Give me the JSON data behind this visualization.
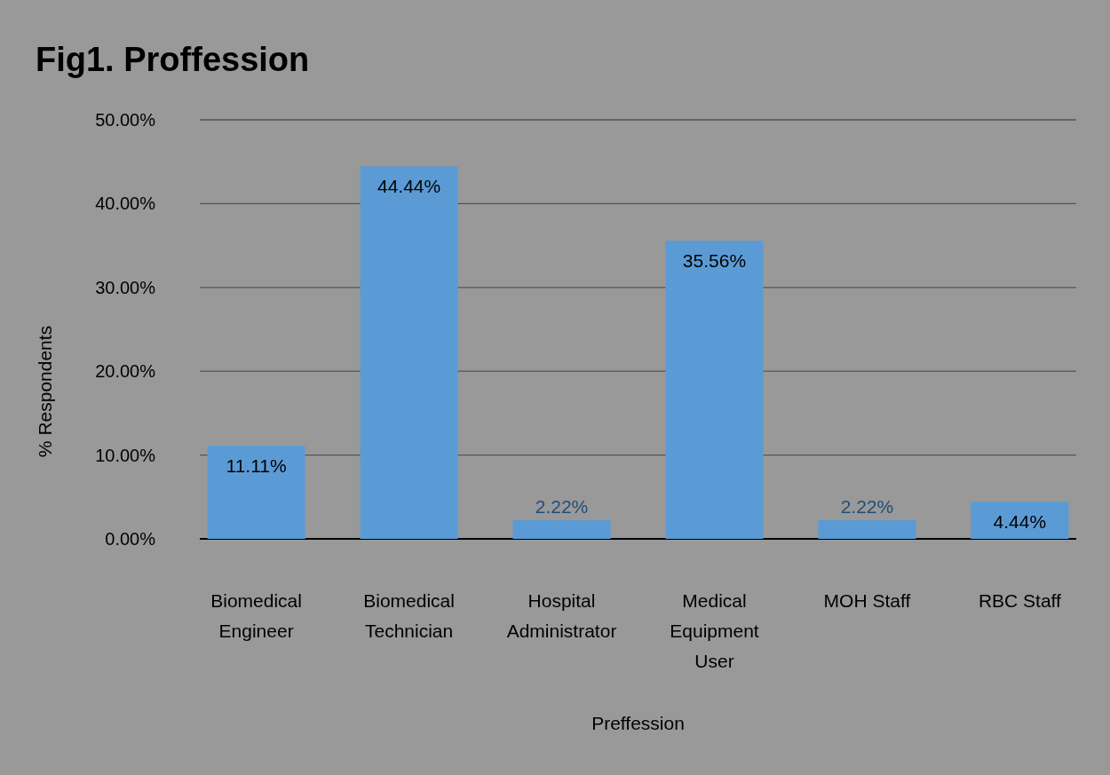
{
  "chart_data": {
    "type": "bar",
    "title": "Fig1. Proffession",
    "xlabel": "Preffession",
    "ylabel": "% Respondents",
    "categories": [
      "Biomedical Engineer",
      "Biomedical Technician",
      "Hospital Administrator",
      "Medical Equipment User",
      "MOH Staff",
      "RBC Staff"
    ],
    "values": [
      11.11,
      44.44,
      2.22,
      35.56,
      2.22,
      4.44
    ],
    "value_labels": [
      "11.11%",
      "44.44%",
      "2.22%",
      "35.56%",
      "2.22%",
      "4.44%"
    ],
    "color": "#5b9bd5",
    "ylim": [
      0,
      50
    ],
    "yticks": [
      {
        "value": 0,
        "label": "0.00%"
      },
      {
        "value": 10,
        "label": "10.00%"
      },
      {
        "value": 20,
        "label": "20.00%"
      },
      {
        "value": 30,
        "label": "30.00%"
      },
      {
        "value": 40,
        "label": "40.00%"
      },
      {
        "value": 50,
        "label": "50.00%"
      }
    ],
    "grid": "y"
  }
}
